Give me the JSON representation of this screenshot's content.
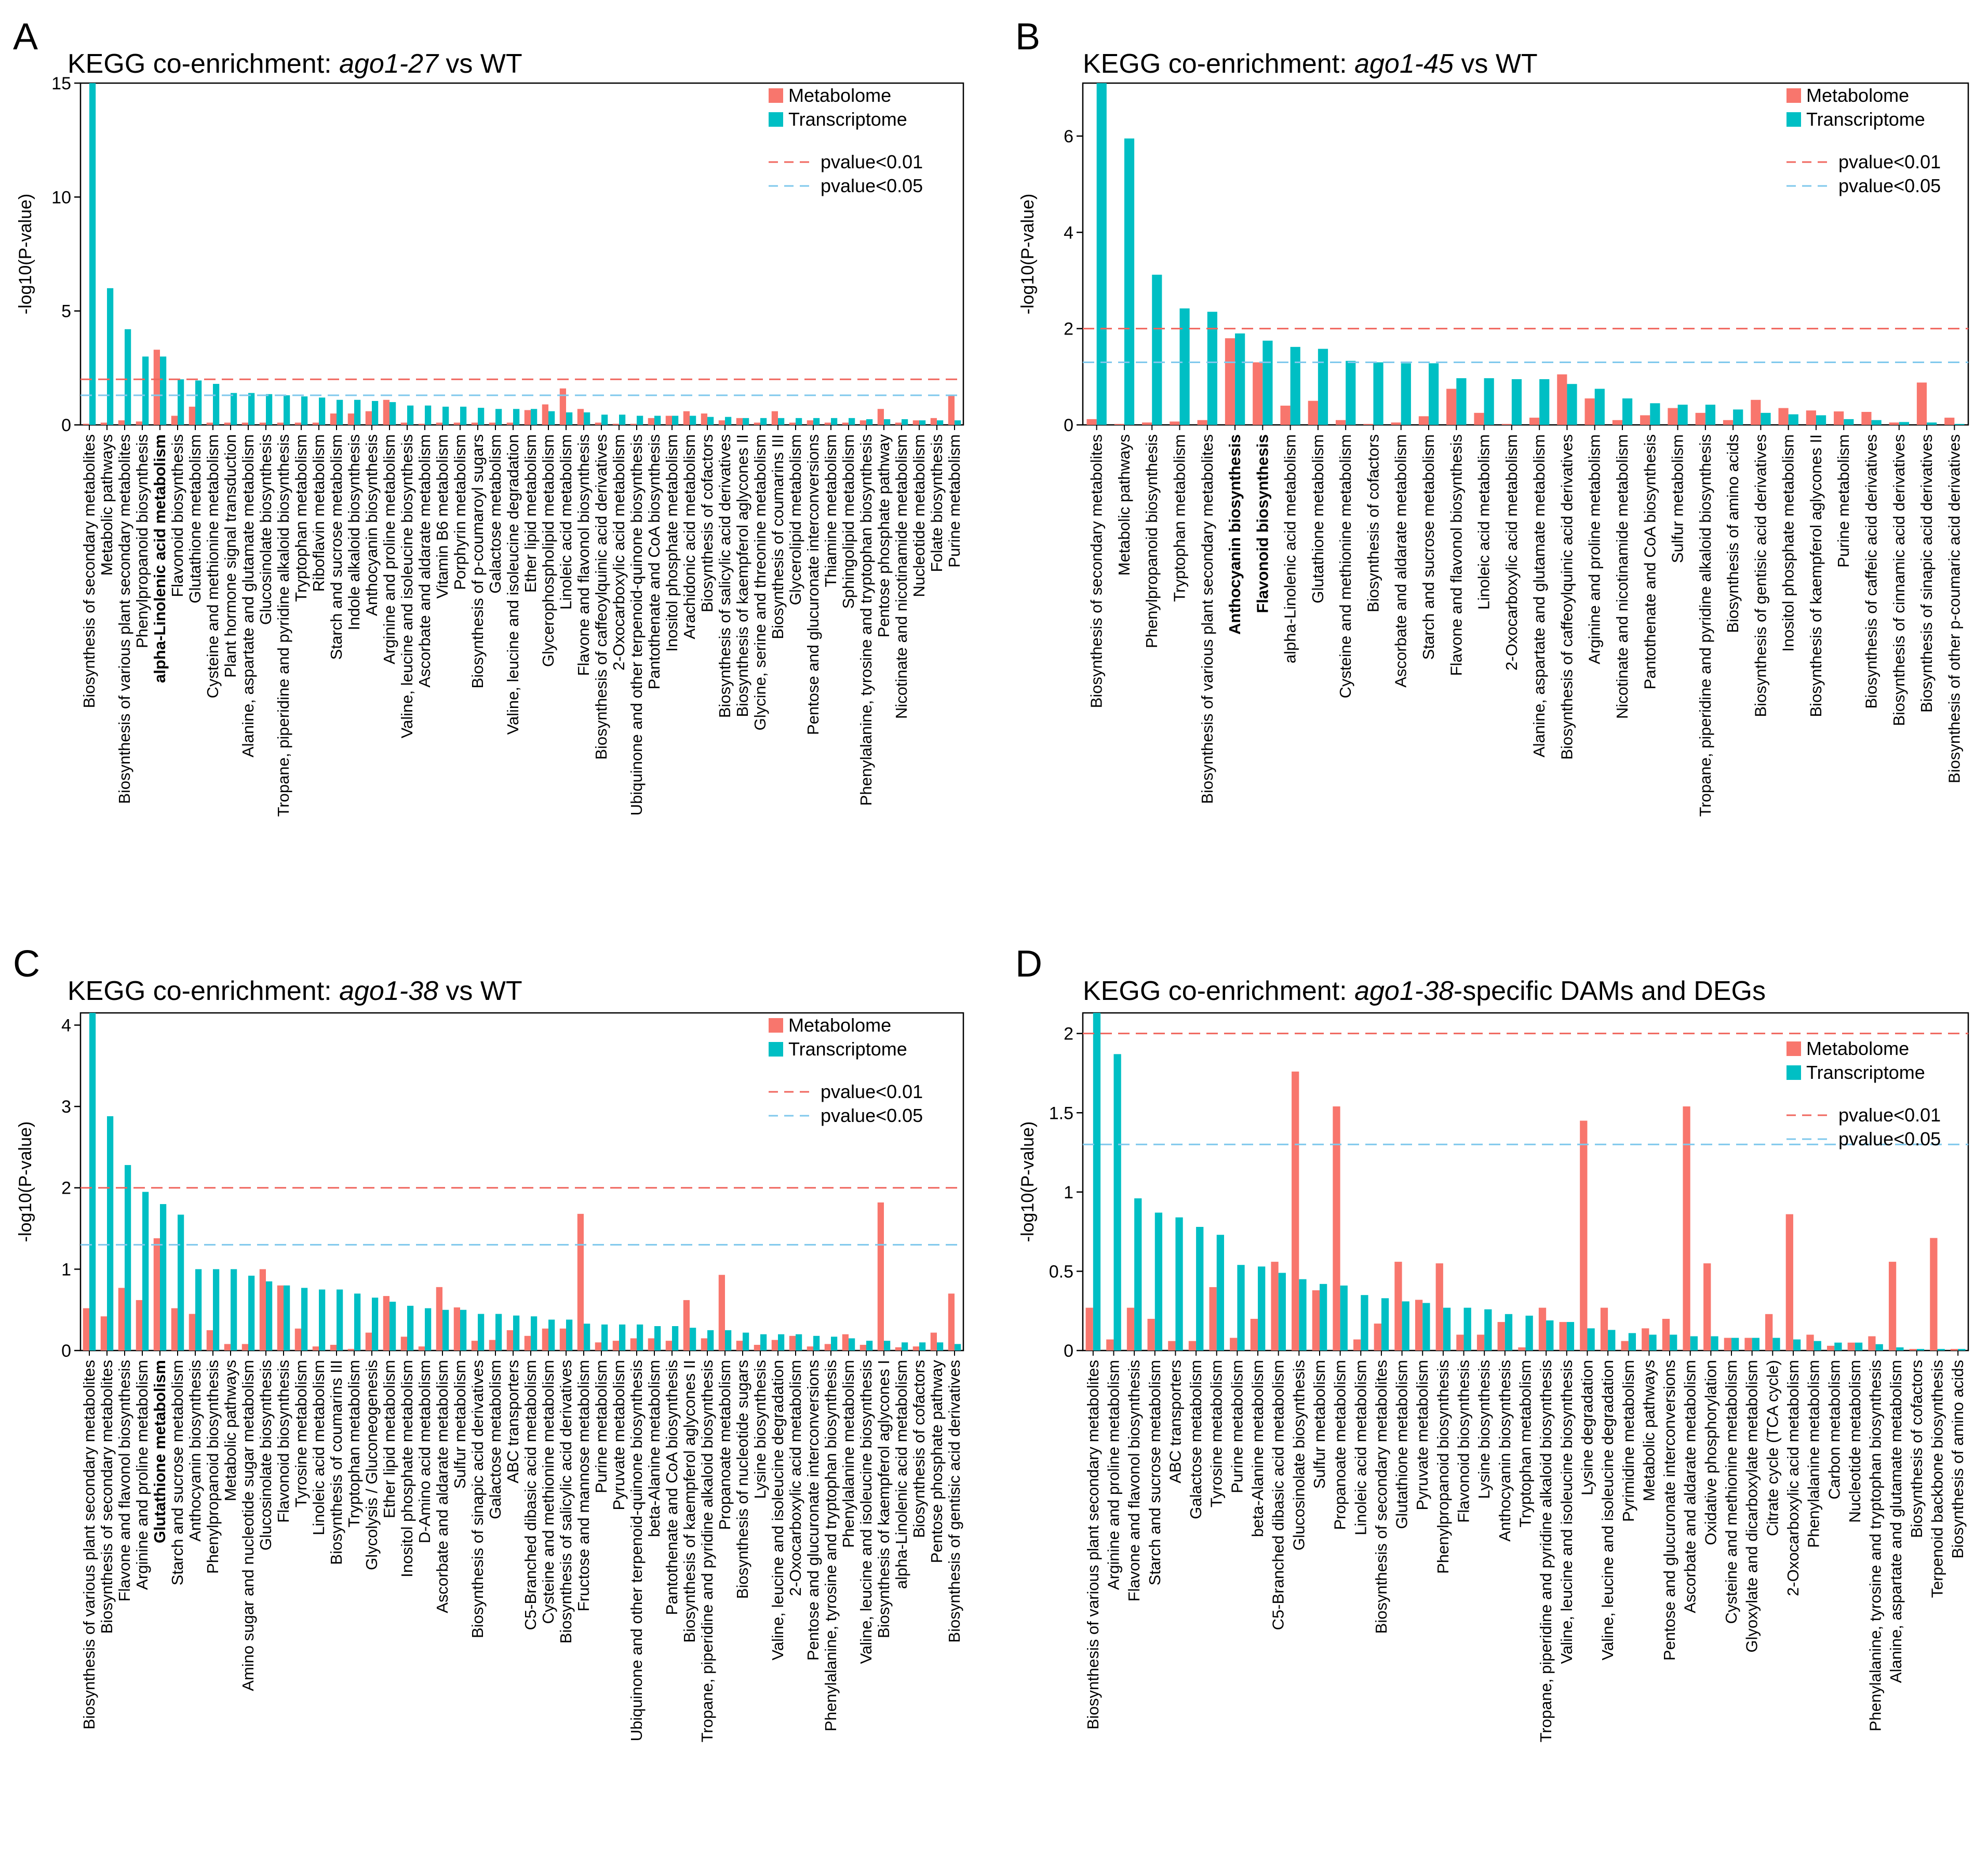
{
  "colors": {
    "metabolome": "#F8766D",
    "transcriptome": "#00BFC4",
    "line_p01": "#F0665E",
    "line_p05": "#7FC8EC",
    "highlight_label": "#C8102E"
  },
  "chart_data": [
    {
      "panel": "A",
      "type": "bar",
      "title": "KEGG co-enrichment: ago1-27 vs WT",
      "title_parts": [
        "KEGG co-enrichment: ",
        "ago1-27",
        " vs WT"
      ],
      "ylabel": "-log10(P-value)",
      "ylim": [
        0,
        15
      ],
      "yticks": [
        0,
        5,
        10,
        15
      ],
      "hlines": {
        "p001": 2.0,
        "p005": 1.3
      },
      "legend": [
        "Metabolome",
        "Transcriptome",
        "pvalue<0.01",
        "pvalue<0.05"
      ],
      "highlighted": [
        "alpha-Linolenic acid metabolism"
      ],
      "categories": [
        "Biosynthesis of secondary metabolites",
        "Metabolic pathways",
        "Biosynthesis of various plant secondary metabolites",
        "Phenylpropanoid biosynthesis",
        "alpha-Linolenic acid metabolism",
        "Flavonoid biosynthesis",
        "Glutathione metabolism",
        "Cysteine and methionine metabolism",
        "Plant hormone signal transduction",
        "Alanine, aspartate and glutamate metabolism",
        "Glucosinolate biosynthesis",
        "Tropane, piperidine and pyridine alkaloid biosynthesis",
        "Tryptophan metabolism",
        "Riboflavin metabolism",
        "Starch and sucrose metabolism",
        "Indole alkaloid biosynthesis",
        "Anthocyanin biosynthesis",
        "Arginine and proline metabolism",
        "Valine, leucine and isoleucine biosynthesis",
        "Ascorbate and aldarate metabolism",
        "Vitamin B6 metabolism",
        "Porphyrin metabolism",
        "Biosynthesis of p-coumaroyl sugars",
        "Galactose metabolism",
        "Valine, leucine and isoleucine degradation",
        "Ether lipid metabolism",
        "Glycerophospholipid metabolism",
        "Linoleic acid metabolism",
        "Flavone and flavonol biosynthesis",
        "Biosynthesis of caffeoylquinic acid derivatives",
        "2-Oxocarboxylic acid metabolism",
        "Ubiquinone and other terpenoid-quinone biosynthesis",
        "Pantothenate and CoA biosynthesis",
        "Inositol phosphate metabolism",
        "Arachidonic acid metabolism",
        "Biosynthesis of cofactors",
        "Biosynthesis of salicylic acid derivatives",
        "Biosynthesis of kaempferol aglycones II",
        "Glycine, serine and threonine metabolism",
        "Biosynthesis of coumarins III",
        "Glycerolipid metabolism",
        "Pentose and glucuronate interconversions",
        "Thiamine metabolism",
        "Sphingolipid metabolism",
        "Phenylalanine, tyrosine and tryptophan biosynthesis",
        "Pentose phosphate pathway",
        "Nicotinate and nicotinamide metabolism",
        "Nucleotide metabolism",
        "Folate biosynthesis",
        "Purine metabolism"
      ],
      "series": [
        {
          "name": "Metabolome",
          "values": [
            0.05,
            0.1,
            0.2,
            0.15,
            3.3,
            0.4,
            0.8,
            0.1,
            0.1,
            0.1,
            0.1,
            0.1,
            0.1,
            0.1,
            0.5,
            0.5,
            0.6,
            1.1,
            0.1,
            0.05,
            0.1,
            0.1,
            0.1,
            0.1,
            0.1,
            0.65,
            0.9,
            1.6,
            0.7,
            0.1,
            0.05,
            0.05,
            0.3,
            0.4,
            0.6,
            0.5,
            0.2,
            0.3,
            0.1,
            0.6,
            0.1,
            0.2,
            0.1,
            0.1,
            0.2,
            0.7,
            0.1,
            0.2,
            0.3,
            1.3
          ]
        },
        {
          "name": "Transcriptome",
          "values": [
            15,
            6.0,
            4.2,
            3.0,
            3.0,
            2.0,
            1.95,
            1.8,
            1.4,
            1.4,
            1.35,
            1.3,
            1.25,
            1.2,
            1.1,
            1.1,
            1.05,
            1.0,
            0.85,
            0.85,
            0.8,
            0.8,
            0.75,
            0.7,
            0.7,
            0.7,
            0.6,
            0.55,
            0.55,
            0.45,
            0.45,
            0.4,
            0.4,
            0.4,
            0.4,
            0.35,
            0.35,
            0.3,
            0.3,
            0.3,
            0.3,
            0.3,
            0.3,
            0.3,
            0.25,
            0.25,
            0.25,
            0.2,
            0.2,
            0.2
          ]
        }
      ]
    },
    {
      "panel": "B",
      "type": "bar",
      "title": "KEGG co-enrichment: ago1-45 vs WT",
      "title_parts": [
        "KEGG co-enrichment: ",
        "ago1-45",
        " vs WT"
      ],
      "ylabel": "-log10(P-value)",
      "ylim": [
        0,
        7.1
      ],
      "yticks": [
        0,
        2,
        4,
        6
      ],
      "hlines": {
        "p001": 2.0,
        "p005": 1.3
      },
      "legend": [
        "Metabolome",
        "Transcriptome",
        "pvalue<0.01",
        "pvalue<0.05"
      ],
      "highlighted": [
        "Anthocyanin biosynthesis",
        "Flavonoid biosynthesis"
      ],
      "categories": [
        "Biosynthesis of secondary metabolites",
        "Metabolic pathways",
        "Phenylpropanoid biosynthesis",
        "Tryptophan metabolism",
        "Biosynthesis of various plant secondary metabolites",
        "Anthocyanin biosynthesis",
        "Flavonoid biosynthesis",
        "alpha-Linolenic acid metabolism",
        "Glutathione metabolism",
        "Cysteine and methionine metabolism",
        "Biosynthesis of cofactors",
        "Ascorbate and aldarate metabolism",
        "Starch and sucrose metabolism",
        "Flavone and flavonol biosynthesis",
        "Linoleic acid metabolism",
        "2-Oxocarboxylic acid metabolism",
        "Alanine, aspartate and glutamate metabolism",
        "Biosynthesis of caffeoylquinic acid derivatives",
        "Arginine and proline metabolism",
        "Nicotinate and nicotinamide metabolism",
        "Pantothenate and CoA biosynthesis",
        "Sulfur metabolism",
        "Tropane, piperidine and pyridine alkaloid biosynthesis",
        "Biosynthesis of amino acids",
        "Biosynthesis of gentisic acid derivatives",
        "Inositol phosphate metabolism",
        "Biosynthesis of kaempferol aglycones II",
        "Purine metabolism",
        "Biosynthesis of caffeic acid derivatives",
        "Biosynthesis of cinnamic acid derivatives",
        "Biosynthesis of sinapic acid derivatives",
        "Biosynthesis of other p-coumaric acid derivatives"
      ],
      "series": [
        {
          "name": "Metabolome",
          "values": [
            0.12,
            0.02,
            0.05,
            0.07,
            0.1,
            1.8,
            1.3,
            0.4,
            0.5,
            0.1,
            0.02,
            0.05,
            0.18,
            0.75,
            0.25,
            0.02,
            0.15,
            1.05,
            0.55,
            0.1,
            0.2,
            0.35,
            0.25,
            0.1,
            0.52,
            0.35,
            0.3,
            0.28,
            0.27,
            0.05,
            0.88,
            0.15
          ]
        },
        {
          "name": "Transcriptome",
          "values": [
            7.1,
            5.95,
            3.12,
            2.42,
            2.35,
            1.9,
            1.75,
            1.62,
            1.58,
            1.33,
            1.3,
            1.28,
            1.28,
            0.97,
            0.97,
            0.95,
            0.95,
            0.85,
            0.75,
            0.55,
            0.45,
            0.42,
            0.42,
            0.32,
            0.25,
            0.22,
            0.2,
            0.12,
            0.1,
            0.06,
            0.05,
            0.02
          ]
        }
      ]
    },
    {
      "panel": "C",
      "type": "bar",
      "title": "KEGG co-enrichment: ago1-38 vs WT",
      "title_parts": [
        "KEGG co-enrichment: ",
        "ago1-38",
        " vs WT"
      ],
      "ylabel": "-log10(P-value)",
      "ylim": [
        0,
        4.15
      ],
      "yticks": [
        0,
        1,
        2,
        3,
        4
      ],
      "hlines": {
        "p001": 2.0,
        "p005": 1.3
      },
      "legend": [
        "Metabolome",
        "Transcriptome",
        "pvalue<0.01",
        "pvalue<0.05"
      ],
      "highlighted": [
        "Glutathione metabolism"
      ],
      "categories": [
        "Biosynthesis of various plant secondary metabolites",
        "Biosynthesis of secondary metabolites",
        "Flavone and flavonol biosynthesis",
        "Arginine and proline metabolism",
        "Glutathione metabolism",
        "Starch and sucrose metabolism",
        "Anthocyanin biosynthesis",
        "Phenylpropanoid biosynthesis",
        "Metabolic pathways",
        "Amino sugar and nucleotide sugar metabolism",
        "Glucosinolate biosynthesis",
        "Flavonoid biosynthesis",
        "Tyrosine metabolism",
        "Linoleic acid metabolism",
        "Biosynthesis of coumarins III",
        "Tryptophan metabolism",
        "Glycolysis / Gluconeogenesis",
        "Ether lipid metabolism",
        "Inositol phosphate metabolism",
        "D-Amino acid metabolism",
        "Ascorbate and aldarate metabolism",
        "Sulfur metabolism",
        "Biosynthesis of sinapic acid derivatives",
        "Galactose metabolism",
        "ABC transporters",
        "C5-Branched dibasic acid metabolism",
        "Cysteine and methionine metabolism",
        "Biosynthesis of salicylic acid derivatives",
        "Fructose and mannose metabolism",
        "Purine metabolism",
        "Pyruvate metabolism",
        "Ubiquinone and other terpenoid-quinone biosynthesis",
        "beta-Alanine metabolism",
        "Pantothenate and CoA biosynthesis",
        "Biosynthesis of kaempferol aglycones II",
        "Tropane, piperidine and pyridine alkaloid biosynthesis",
        "Propanoate metabolism",
        "Biosynthesis of nucleotide sugars",
        "Lysine biosynthesis",
        "Valine, leucine and isoleucine degradation",
        "2-Oxocarboxylic acid metabolism",
        "Pentose and glucuronate interconversions",
        "Phenylalanine, tyrosine and tryptophan biosynthesis",
        "Phenylalanine metabolism",
        "Valine, leucine and isoleucine biosynthesis",
        "Biosynthesis of kaempferol aglycones I",
        "alpha-Linolenic acid metabolism",
        "Biosynthesis of cofactors",
        "Pentose phosphate pathway",
        "Biosynthesis of gentisic acid derivatives"
      ],
      "series": [
        {
          "name": "Metabolome",
          "values": [
            0.52,
            0.42,
            0.77,
            0.62,
            1.38,
            0.52,
            0.45,
            0.25,
            0.08,
            0.08,
            1.0,
            0.8,
            0.27,
            0.05,
            0.07,
            0.02,
            0.22,
            0.67,
            0.17,
            0.05,
            0.78,
            0.53,
            0.12,
            0.13,
            0.25,
            0.18,
            0.27,
            0.27,
            1.68,
            0.1,
            0.12,
            0.15,
            0.15,
            0.12,
            0.62,
            0.15,
            0.93,
            0.12,
            0.07,
            0.13,
            0.18,
            0.05,
            0.08,
            0.2,
            0.07,
            1.82,
            0.04,
            0.05,
            0.22,
            0.7
          ]
        },
        {
          "name": "Transcriptome",
          "values": [
            4.15,
            2.88,
            2.28,
            1.95,
            1.8,
            1.67,
            1.0,
            1.0,
            1.0,
            0.92,
            0.85,
            0.8,
            0.77,
            0.75,
            0.75,
            0.7,
            0.65,
            0.6,
            0.55,
            0.52,
            0.5,
            0.5,
            0.45,
            0.45,
            0.43,
            0.42,
            0.38,
            0.38,
            0.33,
            0.32,
            0.32,
            0.32,
            0.3,
            0.3,
            0.28,
            0.25,
            0.25,
            0.22,
            0.2,
            0.2,
            0.2,
            0.18,
            0.17,
            0.15,
            0.12,
            0.12,
            0.1,
            0.1,
            0.1,
            0.08
          ]
        }
      ]
    },
    {
      "panel": "D",
      "type": "bar",
      "title": "KEGG co-enrichment: ago1-38-specific DAMs and DEGs",
      "title_parts": [
        "KEGG co-enrichment: ",
        "ago1-38",
        "-specific DAMs and DEGs"
      ],
      "ylabel": "-log10(P-value)",
      "ylim": [
        0,
        2.13
      ],
      "yticks": [
        0,
        0.5,
        1,
        1.5,
        2
      ],
      "hlines": {
        "p001": 2.0,
        "p005": 1.3
      },
      "legend": [
        "Metabolome",
        "Transcriptome",
        "pvalue<0.01",
        "pvalue<0.05"
      ],
      "highlighted": [],
      "categories": [
        "Biosynthesis of various plant secondary metabolites",
        "Arginine and proline metabolism",
        "Flavone and flavonol biosynthesis",
        "Starch and sucrose metabolism",
        "ABC transporters",
        "Galactose metabolism",
        "Tyrosine metabolism",
        "Purine metabolism",
        "beta-Alanine metabolism",
        "C5-Branched dibasic acid metabolism",
        "Glucosinolate biosynthesis",
        "Sulfur metabolism",
        "Propanoate metabolism",
        "Linoleic acid metabolism",
        "Biosynthesis of secondary metabolites",
        "Glutathione metabolism",
        "Pyruvate metabolism",
        "Phenylpropanoid biosynthesis",
        "Flavonoid biosynthesis",
        "Lysine biosynthesis",
        "Anthocyanin biosynthesis",
        "Tryptophan metabolism",
        "Tropane, piperidine and pyridine alkaloid biosynthesis",
        "Valine, leucine and isoleucine biosynthesis",
        "Lysine degradation",
        "Valine, leucine and isoleucine degradation",
        "Pyrimidine metabolism",
        "Metabolic pathways",
        "Pentose and glucuronate interconversions",
        "Ascorbate and aldarate metabolism",
        "Oxidative phosphorylation",
        "Cysteine and methionine metabolism",
        "Glyoxylate and dicarboxylate metabolism",
        "Citrate cycle (TCA cycle)",
        "2-Oxocarboxylic acid metabolism",
        "Phenylalanine metabolism",
        "Carbon metabolism",
        "Nucleotide metabolism",
        "Phenylalanine, tyrosine and tryptophan biosynthesis",
        "Alanine, aspartate and glutamate metabolism",
        "Biosynthesis of cofactors",
        "Terpenoid backbone biosynthesis",
        "Biosynthesis of amino acids"
      ],
      "series": [
        {
          "name": "Metabolome",
          "values": [
            0.27,
            0.07,
            0.27,
            0.2,
            0.06,
            0.06,
            0.4,
            0.08,
            0.2,
            0.56,
            1.76,
            0.38,
            1.54,
            0.07,
            0.17,
            0.56,
            0.32,
            0.55,
            0.1,
            0.1,
            0.18,
            0.02,
            0.27,
            0.18,
            1.45,
            0.27,
            0.06,
            0.14,
            0.2,
            1.54,
            0.55,
            0.08,
            0.08,
            0.23,
            0.86,
            0.1,
            0.03,
            0.05,
            0.09,
            0.56,
            0.01,
            0.71,
            0.01
          ]
        },
        {
          "name": "Transcriptome",
          "values": [
            2.13,
            1.87,
            0.96,
            0.87,
            0.84,
            0.78,
            0.73,
            0.54,
            0.53,
            0.49,
            0.45,
            0.42,
            0.41,
            0.35,
            0.33,
            0.31,
            0.3,
            0.27,
            0.27,
            0.26,
            0.23,
            0.22,
            0.19,
            0.18,
            0.14,
            0.13,
            0.11,
            0.1,
            0.1,
            0.09,
            0.09,
            0.08,
            0.08,
            0.08,
            0.07,
            0.06,
            0.05,
            0.05,
            0.04,
            0.02,
            0.01,
            0.01,
            0.01
          ]
        }
      ]
    }
  ]
}
